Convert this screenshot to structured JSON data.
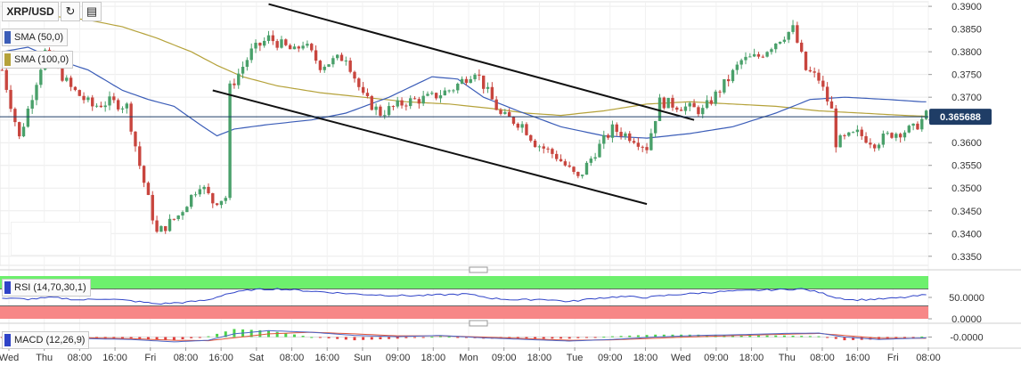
{
  "toolbar": {
    "symbol": "XRP/USD",
    "refresh_icon": "refresh-icon",
    "bars_icon": "bar-chart-icon"
  },
  "indicators": {
    "sma50": {
      "label": "SMA (50,0)",
      "color": "#3b5db8"
    },
    "sma100": {
      "label": "SMA (100,0)",
      "color": "#b5a23a"
    },
    "rsi": {
      "label": "RSI (14,70,30,1)",
      "color": "#2f43c8"
    },
    "macd": {
      "label": "MACD (12,26,9)"
    }
  },
  "colors": {
    "up": "#49a06a",
    "down": "#c8453e",
    "channel": "#111111",
    "rsi_overbought": "#6df06d",
    "rsi_oversold": "#f78787",
    "macd_line": "#4a66c8",
    "signal_line": "#e0553a"
  },
  "chart_data": {
    "type": "candlestick",
    "ylim": [
      0.333,
      0.391
    ],
    "yticks": [
      "0.3900",
      "0.3850",
      "0.3800",
      "0.3750",
      "0.3700",
      "0.3650",
      "0.3600",
      "0.3550",
      "0.3500",
      "0.3450",
      "0.3400",
      "0.3350"
    ],
    "yticks_values": [
      0.39,
      0.385,
      0.38,
      0.375,
      0.37,
      0.365,
      0.36,
      0.355,
      0.35,
      0.345,
      0.34,
      0.335
    ],
    "last_price": "0.365688",
    "last_price_value": 0.365688,
    "xticks": [
      "Wed",
      "Thu",
      "08:00",
      "16:00",
      "Fri",
      "08:00",
      "16:00",
      "Sat",
      "08:00",
      "16:00",
      "Sun",
      "09:00",
      "18:00",
      "Mon",
      "09:00",
      "18:00",
      "Tue",
      "09:00",
      "18:00",
      "Wed",
      "09:00",
      "18:00",
      "Thu",
      "08:00",
      "16:00",
      "Fri",
      "08:00"
    ],
    "anchors": [
      [
        0,
        0.376
      ],
      [
        4,
        0.361
      ],
      [
        10,
        0.38
      ],
      [
        16,
        0.372
      ],
      [
        21,
        0.368
      ],
      [
        25,
        0.369
      ],
      [
        29,
        0.368
      ],
      [
        32,
        0.355
      ],
      [
        36,
        0.34
      ],
      [
        41,
        0.344
      ],
      [
        46,
        0.351
      ],
      [
        49,
        0.347
      ],
      [
        52,
        0.348
      ],
      [
        53,
        0.372
      ],
      [
        58,
        0.38
      ],
      [
        62,
        0.383
      ],
      [
        68,
        0.38
      ],
      [
        70,
        0.382
      ],
      [
        74,
        0.377
      ],
      [
        80,
        0.379
      ],
      [
        84,
        0.37
      ],
      [
        88,
        0.3665
      ],
      [
        94,
        0.369
      ],
      [
        100,
        0.37
      ],
      [
        105,
        0.372
      ],
      [
        110,
        0.376
      ],
      [
        116,
        0.366
      ],
      [
        121,
        0.364
      ],
      [
        124,
        0.36
      ],
      [
        129,
        0.357
      ],
      [
        134,
        0.352
      ],
      [
        138,
        0.358
      ],
      [
        142,
        0.363
      ],
      [
        147,
        0.361
      ],
      [
        150,
        0.359
      ],
      [
        153,
        0.369
      ],
      [
        158,
        0.368
      ],
      [
        163,
        0.367
      ],
      [
        169,
        0.374
      ],
      [
        172,
        0.378
      ],
      [
        176,
        0.379
      ],
      [
        181,
        0.383
      ],
      [
        184,
        0.385
      ],
      [
        187,
        0.376
      ],
      [
        190,
        0.374
      ],
      [
        193,
        0.367
      ],
      [
        194,
        0.36
      ],
      [
        199,
        0.362
      ],
      [
        203,
        0.36
      ],
      [
        207,
        0.362
      ],
      [
        212,
        0.363
      ],
      [
        215,
        0.366
      ]
    ],
    "sma50": [
      [
        0,
        0.38
      ],
      [
        6,
        0.381
      ],
      [
        12,
        0.3785
      ],
      [
        20,
        0.376
      ],
      [
        28,
        0.3715
      ],
      [
        34,
        0.3695
      ],
      [
        40,
        0.368
      ],
      [
        46,
        0.364
      ],
      [
        50,
        0.3615
      ],
      [
        54,
        0.363
      ],
      [
        62,
        0.364
      ],
      [
        72,
        0.365
      ],
      [
        80,
        0.3665
      ],
      [
        90,
        0.37
      ],
      [
        100,
        0.3745
      ],
      [
        106,
        0.374
      ],
      [
        112,
        0.37
      ],
      [
        120,
        0.367
      ],
      [
        130,
        0.3635
      ],
      [
        140,
        0.3615
      ],
      [
        150,
        0.361
      ],
      [
        160,
        0.362
      ],
      [
        170,
        0.3635
      ],
      [
        180,
        0.3665
      ],
      [
        188,
        0.3695
      ],
      [
        196,
        0.37
      ],
      [
        206,
        0.3695
      ],
      [
        214,
        0.369
      ]
    ],
    "sma100": [
      [
        0,
        0.388
      ],
      [
        10,
        0.388
      ],
      [
        20,
        0.387
      ],
      [
        28,
        0.3855
      ],
      [
        36,
        0.383
      ],
      [
        44,
        0.38
      ],
      [
        50,
        0.377
      ],
      [
        56,
        0.3745
      ],
      [
        64,
        0.3725
      ],
      [
        74,
        0.371
      ],
      [
        84,
        0.37
      ],
      [
        94,
        0.369
      ],
      [
        104,
        0.3685
      ],
      [
        114,
        0.3675
      ],
      [
        122,
        0.3665
      ],
      [
        130,
        0.366
      ],
      [
        140,
        0.367
      ],
      [
        150,
        0.3685
      ],
      [
        160,
        0.369
      ],
      [
        170,
        0.3685
      ],
      [
        180,
        0.368
      ],
      [
        190,
        0.367
      ],
      [
        200,
        0.3665
      ],
      [
        210,
        0.366
      ],
      [
        215,
        0.3658
      ]
    ],
    "channel_upper": [
      [
        62,
        0.3905
      ],
      [
        161,
        0.365
      ]
    ],
    "channel_lower": [
      [
        49,
        0.3715
      ],
      [
        150,
        0.3465
      ]
    ],
    "rsi_levels": [
      "50.0000",
      "0.0000"
    ],
    "rsi_levels_values": [
      50,
      0
    ],
    "rsi_overbought": 70,
    "rsi_oversold": 30,
    "rsi_series": [
      [
        0,
        48
      ],
      [
        6,
        46
      ],
      [
        12,
        50
      ],
      [
        18,
        44
      ],
      [
        24,
        47
      ],
      [
        30,
        42
      ],
      [
        36,
        35
      ],
      [
        42,
        38
      ],
      [
        48,
        44
      ],
      [
        52,
        58
      ],
      [
        58,
        68
      ],
      [
        64,
        70
      ],
      [
        70,
        66
      ],
      [
        76,
        62
      ],
      [
        82,
        58
      ],
      [
        90,
        55
      ],
      [
        96,
        54
      ],
      [
        102,
        56
      ],
      [
        108,
        58
      ],
      [
        114,
        48
      ],
      [
        120,
        44
      ],
      [
        126,
        46
      ],
      [
        132,
        40
      ],
      [
        138,
        48
      ],
      [
        144,
        52
      ],
      [
        150,
        50
      ],
      [
        156,
        56
      ],
      [
        162,
        60
      ],
      [
        168,
        64
      ],
      [
        174,
        66
      ],
      [
        180,
        68
      ],
      [
        186,
        70
      ],
      [
        190,
        62
      ],
      [
        194,
        50
      ],
      [
        198,
        44
      ],
      [
        204,
        46
      ],
      [
        210,
        50
      ],
      [
        215,
        56
      ]
    ],
    "macd_levels": [
      "-0.0000"
    ],
    "macd_series": [
      [
        0,
        0.0
      ],
      [
        10,
        0.2
      ],
      [
        20,
        -0.4
      ],
      [
        30,
        -0.6
      ],
      [
        40,
        -1.2
      ],
      [
        48,
        -0.8
      ],
      [
        54,
        0.8
      ],
      [
        62,
        1.6
      ],
      [
        72,
        1.2
      ],
      [
        82,
        0.4
      ],
      [
        92,
        0.1
      ],
      [
        102,
        0.4
      ],
      [
        112,
        -0.2
      ],
      [
        122,
        -0.6
      ],
      [
        132,
        -1.0
      ],
      [
        142,
        -0.6
      ],
      [
        152,
        0.0
      ],
      [
        162,
        0.4
      ],
      [
        172,
        0.6
      ],
      [
        182,
        0.9
      ],
      [
        190,
        1.0
      ],
      [
        196,
        0.0
      ],
      [
        204,
        -0.6
      ],
      [
        215,
        -0.2
      ]
    ],
    "signal_series": [
      [
        0,
        0.1
      ],
      [
        10,
        0.1
      ],
      [
        20,
        -0.2
      ],
      [
        30,
        -0.4
      ],
      [
        40,
        -0.8
      ],
      [
        48,
        -0.9
      ],
      [
        54,
        -0.2
      ],
      [
        62,
        0.8
      ],
      [
        72,
        1.2
      ],
      [
        82,
        0.8
      ],
      [
        92,
        0.3
      ],
      [
        102,
        0.3
      ],
      [
        112,
        0.0
      ],
      [
        122,
        -0.4
      ],
      [
        132,
        -0.8
      ],
      [
        142,
        -0.7
      ],
      [
        152,
        -0.3
      ],
      [
        162,
        0.1
      ],
      [
        172,
        0.4
      ],
      [
        182,
        0.7
      ],
      [
        190,
        0.9
      ],
      [
        196,
        0.4
      ],
      [
        204,
        -0.3
      ],
      [
        215,
        -0.3
      ]
    ],
    "bar_count": 216
  }
}
